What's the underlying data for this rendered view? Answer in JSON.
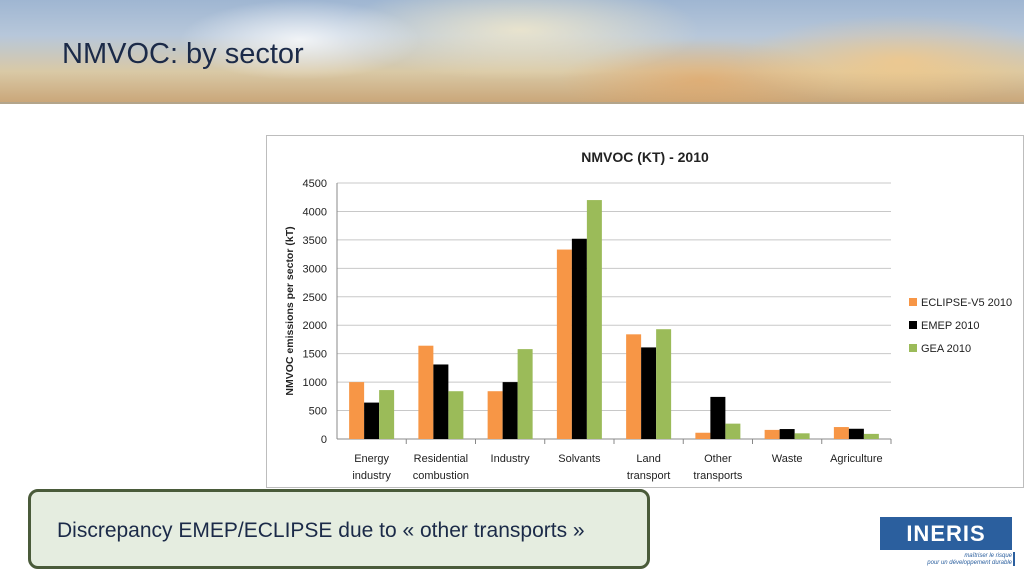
{
  "slide": {
    "title": "NMVOC: by sector",
    "callout": "Discrepancy EMEP/ECLIPSE due to « other transports »",
    "logo_text": "INERIS",
    "logo_tagline_1": "maîtriser le risque",
    "logo_tagline_2": "pour un développement durable"
  },
  "colors": {
    "eclipse": "#f79646",
    "emep": "#000000",
    "gea": "#9bbb59",
    "title_text": "#1b2a48",
    "callout_border": "#4a5b3a"
  },
  "chart_data": {
    "type": "bar",
    "title": "NMVOC (KT) - 2010",
    "xlabel": "",
    "ylabel": "NMVOC emissions per sector (kT)",
    "ylim": [
      0,
      4500
    ],
    "yticks": [
      0,
      500,
      1000,
      1500,
      2000,
      2500,
      3000,
      3500,
      4000,
      4500
    ],
    "grid": true,
    "legend_position": "right",
    "categories": [
      [
        "Energy",
        "industry"
      ],
      [
        "Residential",
        "combustion"
      ],
      [
        "Industry"
      ],
      [
        "Solvants"
      ],
      [
        "Land",
        "transport"
      ],
      [
        "Other",
        "transports"
      ],
      [
        "Waste"
      ],
      [
        "Agriculture"
      ]
    ],
    "series": [
      {
        "name": "ECLIPSE-V5 2010",
        "color": "#f79646",
        "values": [
          1000,
          1640,
          840,
          3330,
          1840,
          110,
          160,
          210
        ]
      },
      {
        "name": "EMEP 2010",
        "color": "#000000",
        "values": [
          640,
          1310,
          1000,
          3520,
          1610,
          740,
          175,
          180
        ]
      },
      {
        "name": "GEA 2010",
        "color": "#9bbb59",
        "values": [
          860,
          840,
          1580,
          4200,
          1930,
          270,
          100,
          90
        ]
      }
    ]
  }
}
